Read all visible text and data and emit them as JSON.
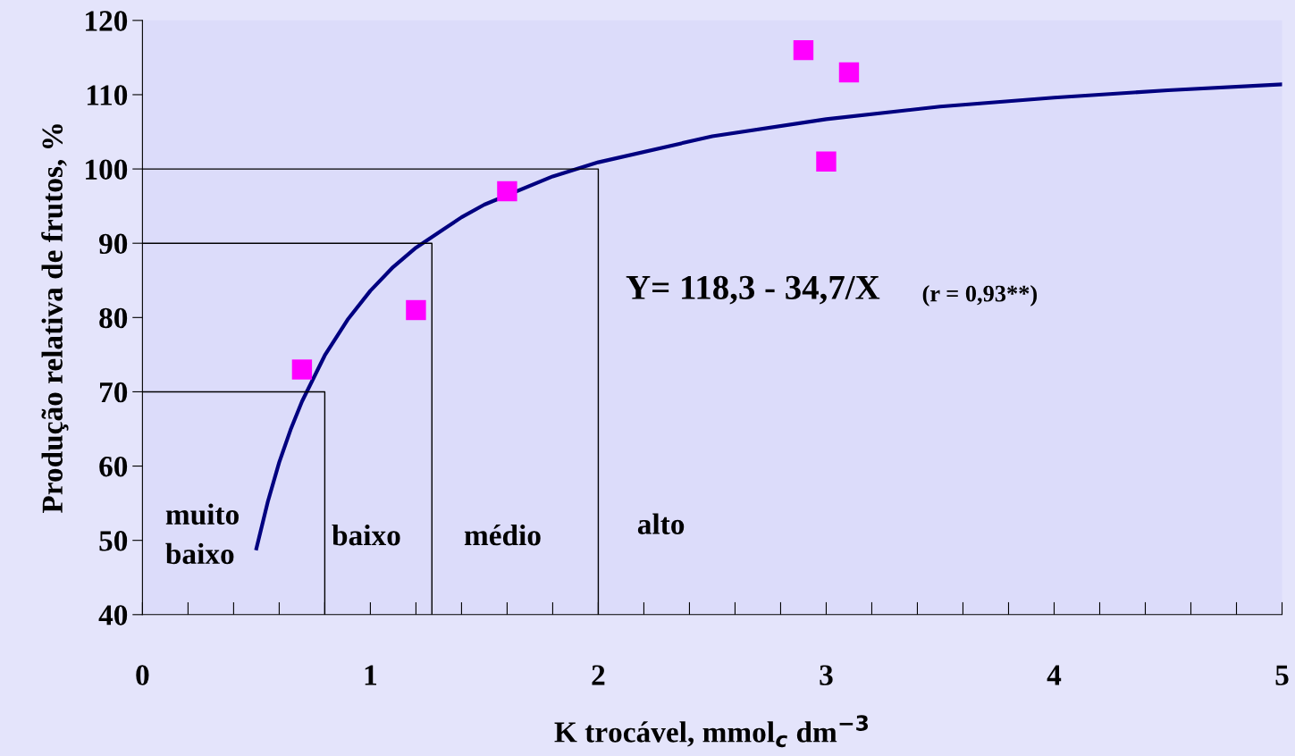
{
  "chart_data": {
    "type": "scatter",
    "xlabel": "K trocável, mmol$_{c}$ dm$^{−3}$",
    "ylabel": "Produção relativa de frutos, %",
    "xlim": [
      0,
      5
    ],
    "ylim": [
      40,
      120
    ],
    "xticks": [
      0,
      {
        "value": 0.2,
        "label": null
      },
      {
        "value": 0.4,
        "label": null
      },
      {
        "value": 0.6,
        "label": null
      },
      {
        "value": 0.8,
        "label": null
      },
      1,
      {
        "value": 1.2,
        "label": null
      },
      {
        "value": 1.4,
        "label": null
      },
      {
        "value": 1.6,
        "label": null
      },
      {
        "value": 1.8,
        "label": null
      },
      2,
      {
        "value": 2.2,
        "label": null
      },
      {
        "value": 2.4,
        "label": null
      },
      {
        "value": 2.6,
        "label": null
      },
      {
        "value": 2.8,
        "label": null
      },
      3,
      {
        "value": 3.2,
        "label": null
      },
      {
        "value": 3.4,
        "label": null
      },
      {
        "value": 3.6,
        "label": null
      },
      {
        "value": 3.8,
        "label": null
      },
      4,
      {
        "value": 4.2,
        "label": null
      },
      {
        "value": 4.4,
        "label": null
      },
      {
        "value": 4.6,
        "label": null
      },
      {
        "value": 4.8,
        "label": null
      },
      5
    ],
    "yticks": [
      40,
      50,
      60,
      70,
      80,
      90,
      100,
      110,
      120
    ],
    "grid": false,
    "series": [
      {
        "color": "#ff00ff",
        "marker": "square",
        "x": [
          0.7,
          1.2,
          1.6,
          2.9,
          3.0,
          3.1
        ],
        "values": [
          73,
          81,
          97,
          116,
          101,
          113
        ]
      },
      {
        "type": "line",
        "color": "#000080",
        "marker": "none",
        "line_style": "solid",
        "x": [
          0.5,
          0.55,
          0.6,
          0.65,
          0.7,
          0.8,
          0.9,
          1.0,
          1.1,
          1.2,
          1.4,
          1.5,
          1.8,
          2.0,
          2.5,
          3.0,
          3.5,
          4.0,
          4.5,
          5.0
        ],
        "values": [
          48.9,
          55.2,
          60.5,
          64.9,
          68.7,
          74.9,
          79.7,
          83.6,
          86.8,
          89.4,
          93.5,
          95.2,
          99.0,
          100.9,
          104.4,
          106.7,
          108.4,
          109.6,
          110.6,
          111.4
        ]
      },
      {
        "type": "line",
        "color": "#000000",
        "marker": "none",
        "line_style": "solid",
        "x": [
          0,
          0.8,
          0.8
        ],
        "values": [
          70,
          70,
          40
        ]
      },
      {
        "type": "line",
        "color": "#000000",
        "marker": "none",
        "line_style": "solid",
        "x": [
          0,
          1.27,
          1.27
        ],
        "values": [
          90,
          90,
          40
        ]
      },
      {
        "type": "line",
        "color": "#000000",
        "marker": "none",
        "line_style": "solid",
        "x": [
          0,
          2.0,
          2.0
        ],
        "values": [
          100,
          100,
          40
        ]
      }
    ],
    "annotations": [
      "muito\nbaixo",
      "baixo",
      "médio",
      "alto",
      "Y= 118,3 - 34,7/X",
      "(r = 0,93**)"
    ]
  }
}
